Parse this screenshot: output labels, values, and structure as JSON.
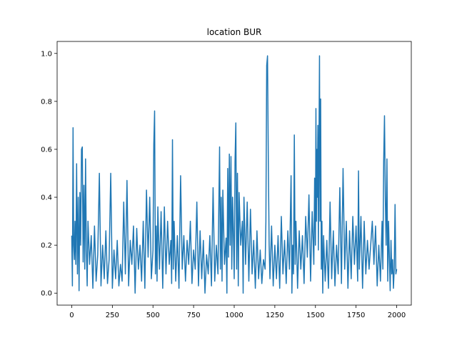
{
  "chart_data": {
    "type": "line",
    "title": "location BUR",
    "xlabel": "",
    "ylabel": "",
    "xlim": [
      -90,
      2090
    ],
    "ylim": [
      -0.05,
      1.05
    ],
    "x_ticks": [
      0,
      250,
      500,
      750,
      1000,
      1250,
      1500,
      1750,
      2000
    ],
    "y_ticks": [
      0.0,
      0.2,
      0.4,
      0.6,
      0.8,
      1.0
    ],
    "grid": false,
    "legend": "none",
    "series": [
      {
        "color": "#1f77b4",
        "points": [
          [
            0,
            0.24
          ],
          [
            4,
            0.03
          ],
          [
            8,
            0.69
          ],
          [
            12,
            0.2
          ],
          [
            16,
            0.14
          ],
          [
            20,
            0.3
          ],
          [
            25,
            0.12
          ],
          [
            30,
            0.54
          ],
          [
            35,
            0.08
          ],
          [
            40,
            0.4
          ],
          [
            45,
            0.01
          ],
          [
            50,
            0.42
          ],
          [
            55,
            0.2
          ],
          [
            60,
            0.6
          ],
          [
            65,
            0.61
          ],
          [
            70,
            0.13
          ],
          [
            75,
            0.45
          ],
          [
            80,
            0.1
          ],
          [
            85,
            0.56
          ],
          [
            90,
            0.18
          ],
          [
            95,
            0.03
          ],
          [
            100,
            0.3
          ],
          [
            110,
            0.12
          ],
          [
            120,
            0.24
          ],
          [
            130,
            0.02
          ],
          [
            140,
            0.28
          ],
          [
            150,
            0.05
          ],
          [
            160,
            0.16
          ],
          [
            170,
            0.5
          ],
          [
            180,
            0.03
          ],
          [
            190,
            0.2
          ],
          [
            200,
            0.06
          ],
          [
            210,
            0.26
          ],
          [
            220,
            0.04
          ],
          [
            230,
            0.14
          ],
          [
            240,
            0.5
          ],
          [
            250,
            0.02
          ],
          [
            260,
            0.18
          ],
          [
            270,
            0.06
          ],
          [
            280,
            0.22
          ],
          [
            290,
            0.03
          ],
          [
            300,
            0.12
          ],
          [
            310,
            0.05
          ],
          [
            320,
            0.38
          ],
          [
            330,
            0.08
          ],
          [
            340,
            0.47
          ],
          [
            350,
            0.03
          ],
          [
            360,
            0.22
          ],
          [
            370,
            0.12
          ],
          [
            380,
            0.28
          ],
          [
            390,
            0.0
          ],
          [
            400,
            0.27
          ],
          [
            410,
            0.1
          ],
          [
            420,
            0.2
          ],
          [
            430,
            0.05
          ],
          [
            440,
            0.3
          ],
          [
            450,
            0.02
          ],
          [
            460,
            0.43
          ],
          [
            470,
            0.15
          ],
          [
            480,
            0.4
          ],
          [
            490,
            0.06
          ],
          [
            500,
            0.18
          ],
          [
            505,
            0.62
          ],
          [
            510,
            0.76
          ],
          [
            515,
            0.08
          ],
          [
            520,
            0.28
          ],
          [
            525,
            0.05
          ],
          [
            530,
            0.36
          ],
          [
            540,
            0.1
          ],
          [
            550,
            0.34
          ],
          [
            560,
            0.02
          ],
          [
            570,
            0.36
          ],
          [
            580,
            0.08
          ],
          [
            590,
            0.3
          ],
          [
            600,
            0.12
          ],
          [
            610,
            0.22
          ],
          [
            615,
            0.04
          ],
          [
            620,
            0.64
          ],
          [
            625,
            0.1
          ],
          [
            630,
            0.3
          ],
          [
            640,
            0.05
          ],
          [
            650,
            0.24
          ],
          [
            660,
            0.02
          ],
          [
            670,
            0.49
          ],
          [
            680,
            0.1
          ],
          [
            690,
            0.24
          ],
          [
            700,
            0.05
          ],
          [
            710,
            0.22
          ],
          [
            720,
            0.12
          ],
          [
            730,
            0.3
          ],
          [
            740,
            0.04
          ],
          [
            750,
            0.18
          ],
          [
            760,
            0.1
          ],
          [
            770,
            0.38
          ],
          [
            780,
            0.03
          ],
          [
            790,
            0.26
          ],
          [
            800,
            0.06
          ],
          [
            810,
            0.22
          ],
          [
            820,
            0.0
          ],
          [
            830,
            0.16
          ],
          [
            840,
            0.08
          ],
          [
            850,
            0.24
          ],
          [
            860,
            0.03
          ],
          [
            870,
            0.44
          ],
          [
            880,
            0.05
          ],
          [
            890,
            0.2
          ],
          [
            900,
            0.08
          ],
          [
            905,
            0.35
          ],
          [
            910,
            0.61
          ],
          [
            915,
            0.1
          ],
          [
            920,
            0.4
          ],
          [
            925,
            0.05
          ],
          [
            930,
            0.43
          ],
          [
            940,
            0.12
          ],
          [
            950,
            0.23
          ],
          [
            955,
            0.0
          ],
          [
            960,
            0.52
          ],
          [
            965,
            0.15
          ],
          [
            970,
            0.58
          ],
          [
            975,
            0.2
          ],
          [
            980,
            0.57
          ],
          [
            985,
            0.1
          ],
          [
            990,
            0.4
          ],
          [
            995,
            0.25
          ],
          [
            1000,
            0.06
          ],
          [
            1005,
            0.55
          ],
          [
            1010,
            0.71
          ],
          [
            1015,
            0.1
          ],
          [
            1020,
            0.5
          ],
          [
            1025,
            0.03
          ],
          [
            1030,
            0.42
          ],
          [
            1040,
            0.2
          ],
          [
            1050,
            0.3
          ],
          [
            1055,
            0.0
          ],
          [
            1060,
            0.4
          ],
          [
            1070,
            0.12
          ],
          [
            1080,
            0.38
          ],
          [
            1090,
            0.05
          ],
          [
            1100,
            0.35
          ],
          [
            1110,
            0.08
          ],
          [
            1120,
            0.22
          ],
          [
            1130,
            0.02
          ],
          [
            1140,
            0.26
          ],
          [
            1150,
            0.06
          ],
          [
            1160,
            0.18
          ],
          [
            1170,
            0.04
          ],
          [
            1180,
            0.14
          ],
          [
            1190,
            0.1
          ],
          [
            1195,
            0.3
          ],
          [
            1200,
            0.95
          ],
          [
            1205,
            0.99
          ],
          [
            1210,
            0.55
          ],
          [
            1215,
            0.2
          ],
          [
            1220,
            0.06
          ],
          [
            1230,
            0.28
          ],
          [
            1240,
            0.03
          ],
          [
            1250,
            0.2
          ],
          [
            1260,
            0.06
          ],
          [
            1270,
            0.24
          ],
          [
            1280,
            0.02
          ],
          [
            1290,
            0.32
          ],
          [
            1300,
            0.08
          ],
          [
            1310,
            0.22
          ],
          [
            1320,
            0.04
          ],
          [
            1330,
            0.26
          ],
          [
            1340,
            0.1
          ],
          [
            1350,
            0.49
          ],
          [
            1355,
            0.0
          ],
          [
            1360,
            0.2
          ],
          [
            1365,
            0.08
          ],
          [
            1370,
            0.66
          ],
          [
            1375,
            0.12
          ],
          [
            1380,
            0.3
          ],
          [
            1390,
            0.02
          ],
          [
            1400,
            0.26
          ],
          [
            1410,
            0.1
          ],
          [
            1420,
            0.24
          ],
          [
            1430,
            0.04
          ],
          [
            1440,
            0.32
          ],
          [
            1450,
            0.15
          ],
          [
            1460,
            0.41
          ],
          [
            1470,
            0.05
          ],
          [
            1480,
            0.34
          ],
          [
            1490,
            0.12
          ],
          [
            1495,
            0.48
          ],
          [
            1500,
            0.2
          ],
          [
            1503,
            0.77
          ],
          [
            1506,
            0.3
          ],
          [
            1509,
            0.6
          ],
          [
            1512,
            0.4
          ],
          [
            1515,
            0.7
          ],
          [
            1518,
            0.18
          ],
          [
            1521,
            0.55
          ],
          [
            1525,
            0.99
          ],
          [
            1528,
            0.3
          ],
          [
            1532,
            0.81
          ],
          [
            1536,
            0.1
          ],
          [
            1540,
            0.3
          ],
          [
            1545,
            0.0
          ],
          [
            1550,
            0.24
          ],
          [
            1560,
            0.05
          ],
          [
            1570,
            0.22
          ],
          [
            1580,
            0.02
          ],
          [
            1590,
            0.38
          ],
          [
            1600,
            0.06
          ],
          [
            1610,
            0.26
          ],
          [
            1620,
            0.03
          ],
          [
            1630,
            0.2
          ],
          [
            1640,
            0.08
          ],
          [
            1650,
            0.44
          ],
          [
            1660,
            0.04
          ],
          [
            1670,
            0.52
          ],
          [
            1680,
            0.1
          ],
          [
            1690,
            0.3
          ],
          [
            1700,
            0.02
          ],
          [
            1710,
            0.26
          ],
          [
            1720,
            0.06
          ],
          [
            1730,
            0.32
          ],
          [
            1740,
            0.12
          ],
          [
            1750,
            0.28
          ],
          [
            1760,
            0.05
          ],
          [
            1765,
            0.51
          ],
          [
            1770,
            0.1
          ],
          [
            1780,
            0.32
          ],
          [
            1790,
            0.02
          ],
          [
            1800,
            0.3
          ],
          [
            1810,
            0.08
          ],
          [
            1820,
            0.22
          ],
          [
            1830,
            0.1
          ],
          [
            1840,
            0.2
          ],
          [
            1850,
            0.3
          ],
          [
            1860,
            0.12
          ],
          [
            1870,
            0.28
          ],
          [
            1880,
            0.03
          ],
          [
            1890,
            0.2
          ],
          [
            1900,
            0.05
          ],
          [
            1910,
            0.3
          ],
          [
            1915,
            0.1
          ],
          [
            1920,
            0.55
          ],
          [
            1925,
            0.74
          ],
          [
            1930,
            0.4
          ],
          [
            1935,
            0.2
          ],
          [
            1940,
            0.56
          ],
          [
            1945,
            0.05
          ],
          [
            1950,
            0.3
          ],
          [
            1955,
            0.15
          ],
          [
            1960,
            0.01
          ],
          [
            1965,
            0.22
          ],
          [
            1970,
            0.08
          ],
          [
            1975,
            0.14
          ],
          [
            1980,
            0.02
          ],
          [
            1985,
            0.1
          ],
          [
            1990,
            0.37
          ],
          [
            1995,
            0.08
          ],
          [
            2000,
            0.1
          ]
        ]
      }
    ]
  }
}
